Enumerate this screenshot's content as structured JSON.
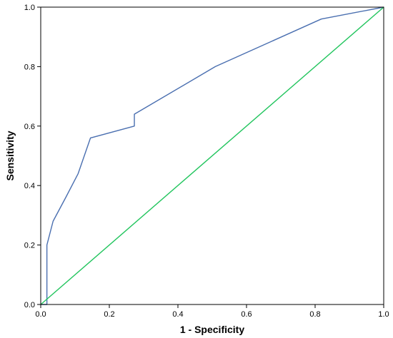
{
  "chart_data": {
    "type": "line",
    "title": "",
    "xlabel": "1 - Specificity",
    "ylabel": "Sensitivity",
    "xlim": [
      0,
      1
    ],
    "ylim": [
      0,
      1
    ],
    "x_ticks": [
      "0.0",
      "0.2",
      "0.4",
      "0.6",
      "0.8",
      "1.0"
    ],
    "y_ticks": [
      "0.0",
      "0.2",
      "0.4",
      "0.6",
      "0.8",
      "1.0"
    ],
    "grid": false,
    "legend": "none",
    "series": [
      {
        "color": "#4a6fb0",
        "x": [
          0.0,
          0.018,
          0.018,
          0.036,
          0.073,
          0.109,
          0.145,
          0.273,
          0.273,
          0.509,
          0.818,
          1.0
        ],
        "y": [
          0.0,
          0.0,
          0.2,
          0.28,
          0.36,
          0.44,
          0.56,
          0.6,
          0.64,
          0.8,
          0.96,
          1.0
        ]
      },
      {
        "color": "#22c55e",
        "x": [
          0.0,
          1.0
        ],
        "y": [
          0.0,
          1.0
        ]
      }
    ]
  }
}
